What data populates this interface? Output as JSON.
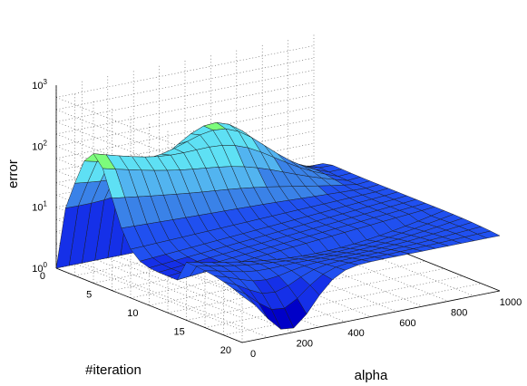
{
  "chart_data": {
    "type": "surface3d",
    "x": [
      0,
      50,
      100,
      150,
      200,
      250,
      300,
      350,
      400,
      450,
      500,
      550,
      600,
      650,
      700,
      750,
      800,
      850,
      900,
      950,
      1000
    ],
    "y": [
      0,
      1,
      2,
      3,
      4,
      5,
      6,
      7,
      8,
      9,
      10,
      11,
      12,
      13,
      14,
      15,
      16,
      17,
      18,
      19,
      20
    ],
    "z_description": "log10(error); rows indexed by #iteration, columns by alpha",
    "xlabel": "alpha",
    "ylabel": "#iteration",
    "zlabel": "error",
    "xticks": [
      "0",
      "200",
      "400",
      "600",
      "800",
      "1000"
    ],
    "yticks": [
      "0",
      "5",
      "10",
      "15",
      "20"
    ],
    "zticks": [
      {
        "base": "10",
        "exp": "0"
      },
      {
        "base": "10",
        "exp": "1"
      },
      {
        "base": "10",
        "exp": "2"
      },
      {
        "base": "10",
        "exp": "3"
      }
    ],
    "xlim": [
      0,
      1000
    ],
    "ylim": [
      0,
      20
    ],
    "zlim_log10": [
      0,
      3
    ],
    "grid": true,
    "colormap": [
      "#0000c8",
      "#1530e8",
      "#2050f0",
      "#3a82e8",
      "#52b4f0",
      "#5ee0f4",
      "#7cfc7c",
      "#f0f800",
      "#fca000"
    ]
  }
}
